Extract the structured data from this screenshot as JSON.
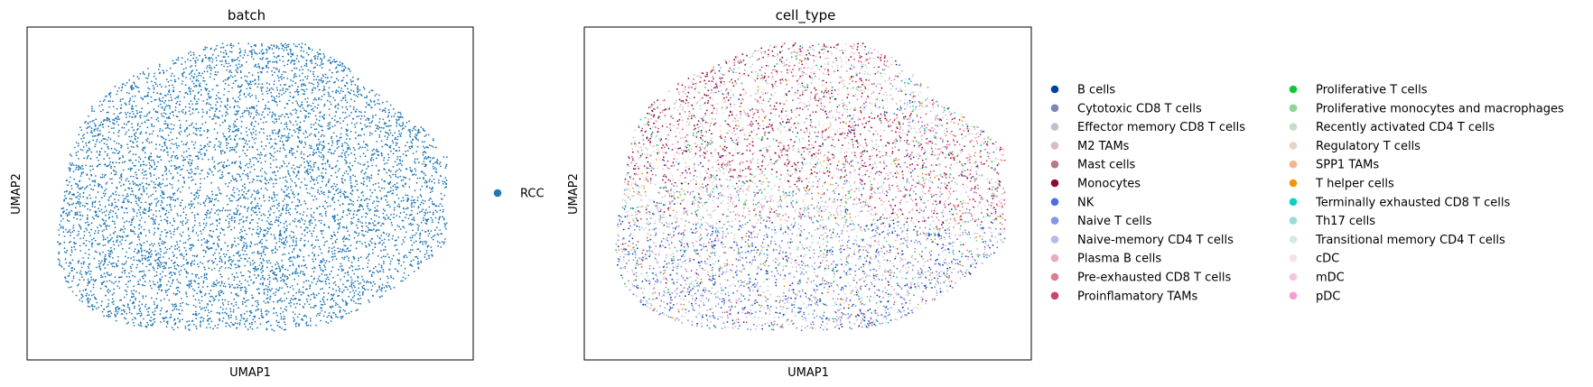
{
  "chart_data": [
    {
      "type": "scatter",
      "title": "batch",
      "xlabel": "UMAP1",
      "ylabel": "UMAP2",
      "grid": false,
      "ticks": false,
      "legend_position": "right",
      "series": [
        {
          "name": "RCC",
          "color": "#1f77b4"
        }
      ]
    },
    {
      "type": "scatter",
      "title": "cell_type",
      "xlabel": "UMAP1",
      "ylabel": "UMAP2",
      "grid": false,
      "ticks": false,
      "legend_position": "right, two columns",
      "series": [
        {
          "name": "B cells",
          "color": "#023fa5"
        },
        {
          "name": "Cytotoxic CD8 T cells",
          "color": "#7d87b9"
        },
        {
          "name": "Effector memory CD8 T cells",
          "color": "#bec1d4"
        },
        {
          "name": "M2 TAMs",
          "color": "#d6bcc0"
        },
        {
          "name": "Mast cells",
          "color": "#bb7784"
        },
        {
          "name": "Monocytes",
          "color": "#8e063b"
        },
        {
          "name": "NK",
          "color": "#4a6fe3"
        },
        {
          "name": "Naive T cells",
          "color": "#8595e1"
        },
        {
          "name": "Naive-memory CD4 T cells",
          "color": "#b5bbe3"
        },
        {
          "name": "Plasma B cells",
          "color": "#e6afb9"
        },
        {
          "name": "Pre-exhausted CD8 T cells",
          "color": "#e07b91"
        },
        {
          "name": "Proinflamatory TAMs",
          "color": "#d33f6a"
        },
        {
          "name": "Proliferative T cells",
          "color": "#11c638"
        },
        {
          "name": "Proliferative monocytes and macrophages",
          "color": "#8dd593"
        },
        {
          "name": "Recently activated CD4 T cells",
          "color": "#c6dec7"
        },
        {
          "name": "Regulatory T cells",
          "color": "#ead3c6"
        },
        {
          "name": "SPP1 TAMs",
          "color": "#f0b98d"
        },
        {
          "name": "T helper cells",
          "color": "#ef9708"
        },
        {
          "name": "Terminally exhausted CD8 T cells",
          "color": "#0fcfc0"
        },
        {
          "name": "Th17 cells",
          "color": "#9cded6"
        },
        {
          "name": "Transitional memory CD4 T cells",
          "color": "#d5eae7"
        },
        {
          "name": "cDC",
          "color": "#f3e1eb"
        },
        {
          "name": "mDC",
          "color": "#f6c4e1"
        },
        {
          "name": "pDC",
          "color": "#f79cd4"
        }
      ]
    }
  ]
}
